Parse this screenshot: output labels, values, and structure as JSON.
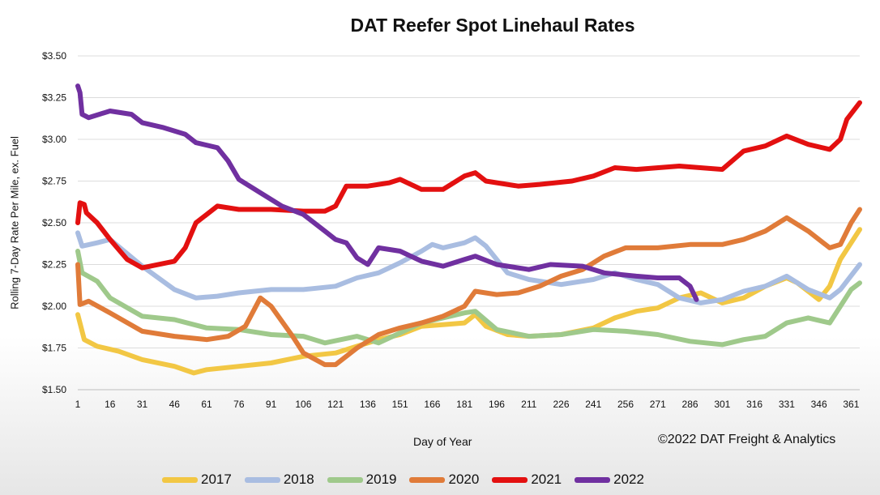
{
  "chart_data": {
    "type": "line",
    "title": "DAT Reefer Spot Linehaul Rates",
    "xlabel": "Day of Year",
    "ylabel": "Rolling 7-Day Rate Per Mile, ex. Fuel",
    "credit": "©2022 DAT Freight & Analytics",
    "xlim": [
      1,
      365
    ],
    "ylim": [
      1.5,
      3.5
    ],
    "xticks": [
      1,
      16,
      31,
      46,
      61,
      76,
      91,
      106,
      121,
      136,
      151,
      166,
      181,
      196,
      211,
      226,
      241,
      256,
      271,
      286,
      301,
      316,
      331,
      346,
      361
    ],
    "yticks": [
      {
        "value": 1.5,
        "label": "$1.50"
      },
      {
        "value": 1.75,
        "label": "$1.75"
      },
      {
        "value": 2.0,
        "label": "$2.00"
      },
      {
        "value": 2.25,
        "label": "$2.25"
      },
      {
        "value": 2.5,
        "label": "$2.50"
      },
      {
        "value": 2.75,
        "label": "$2.75"
      },
      {
        "value": 3.0,
        "label": "$3.00"
      },
      {
        "value": 3.25,
        "label": "$3.25"
      },
      {
        "value": 3.5,
        "label": "$3.50"
      }
    ],
    "grid": true,
    "legend_position": "bottom",
    "series": [
      {
        "name": "2017",
        "color": "#f2c744",
        "points": [
          [
            1,
            1.95
          ],
          [
            4,
            1.8
          ],
          [
            10,
            1.76
          ],
          [
            20,
            1.73
          ],
          [
            31,
            1.68
          ],
          [
            46,
            1.64
          ],
          [
            55,
            1.6
          ],
          [
            61,
            1.62
          ],
          [
            76,
            1.64
          ],
          [
            91,
            1.66
          ],
          [
            106,
            1.7
          ],
          [
            121,
            1.72
          ],
          [
            131,
            1.76
          ],
          [
            141,
            1.8
          ],
          [
            151,
            1.83
          ],
          [
            161,
            1.88
          ],
          [
            171,
            1.89
          ],
          [
            181,
            1.9
          ],
          [
            186,
            1.95
          ],
          [
            191,
            1.88
          ],
          [
            201,
            1.83
          ],
          [
            211,
            1.82
          ],
          [
            226,
            1.83
          ],
          [
            241,
            1.87
          ],
          [
            251,
            1.93
          ],
          [
            261,
            1.97
          ],
          [
            271,
            1.99
          ],
          [
            281,
            2.05
          ],
          [
            291,
            2.08
          ],
          [
            301,
            2.02
          ],
          [
            311,
            2.05
          ],
          [
            321,
            2.12
          ],
          [
            331,
            2.17
          ],
          [
            336,
            2.14
          ],
          [
            346,
            2.04
          ],
          [
            351,
            2.12
          ],
          [
            356,
            2.28
          ],
          [
            365,
            2.46
          ]
        ]
      },
      {
        "name": "2018",
        "color": "#a9bde1",
        "points": [
          [
            1,
            2.44
          ],
          [
            3,
            2.36
          ],
          [
            10,
            2.38
          ],
          [
            16,
            2.4
          ],
          [
            31,
            2.24
          ],
          [
            46,
            2.1
          ],
          [
            56,
            2.05
          ],
          [
            66,
            2.06
          ],
          [
            76,
            2.08
          ],
          [
            91,
            2.1
          ],
          [
            106,
            2.1
          ],
          [
            121,
            2.12
          ],
          [
            131,
            2.17
          ],
          [
            141,
            2.2
          ],
          [
            151,
            2.26
          ],
          [
            161,
            2.33
          ],
          [
            166,
            2.37
          ],
          [
            171,
            2.35
          ],
          [
            181,
            2.38
          ],
          [
            186,
            2.41
          ],
          [
            191,
            2.36
          ],
          [
            201,
            2.2
          ],
          [
            211,
            2.16
          ],
          [
            226,
            2.13
          ],
          [
            241,
            2.16
          ],
          [
            251,
            2.2
          ],
          [
            261,
            2.16
          ],
          [
            271,
            2.13
          ],
          [
            281,
            2.05
          ],
          [
            291,
            2.02
          ],
          [
            301,
            2.04
          ],
          [
            311,
            2.09
          ],
          [
            321,
            2.12
          ],
          [
            331,
            2.18
          ],
          [
            341,
            2.1
          ],
          [
            351,
            2.05
          ],
          [
            356,
            2.1
          ],
          [
            365,
            2.25
          ]
        ]
      },
      {
        "name": "2019",
        "color": "#9fc98b",
        "points": [
          [
            1,
            2.33
          ],
          [
            3,
            2.2
          ],
          [
            10,
            2.15
          ],
          [
            16,
            2.05
          ],
          [
            31,
            1.94
          ],
          [
            46,
            1.92
          ],
          [
            61,
            1.87
          ],
          [
            76,
            1.86
          ],
          [
            91,
            1.83
          ],
          [
            106,
            1.82
          ],
          [
            116,
            1.78
          ],
          [
            131,
            1.82
          ],
          [
            141,
            1.78
          ],
          [
            151,
            1.84
          ],
          [
            161,
            1.9
          ],
          [
            171,
            1.93
          ],
          [
            181,
            1.96
          ],
          [
            186,
            1.97
          ],
          [
            196,
            1.86
          ],
          [
            211,
            1.82
          ],
          [
            226,
            1.83
          ],
          [
            241,
            1.86
          ],
          [
            256,
            1.85
          ],
          [
            271,
            1.83
          ],
          [
            286,
            1.79
          ],
          [
            301,
            1.77
          ],
          [
            311,
            1.8
          ],
          [
            321,
            1.82
          ],
          [
            331,
            1.9
          ],
          [
            341,
            1.93
          ],
          [
            351,
            1.9
          ],
          [
            361,
            2.1
          ],
          [
            365,
            2.14
          ]
        ]
      },
      {
        "name": "2020",
        "color": "#e07b39",
        "points": [
          [
            1,
            2.25
          ],
          [
            2,
            2.01
          ],
          [
            6,
            2.03
          ],
          [
            16,
            1.96
          ],
          [
            31,
            1.85
          ],
          [
            46,
            1.82
          ],
          [
            61,
            1.8
          ],
          [
            71,
            1.82
          ],
          [
            79,
            1.88
          ],
          [
            86,
            2.05
          ],
          [
            91,
            2.0
          ],
          [
            101,
            1.82
          ],
          [
            106,
            1.72
          ],
          [
            116,
            1.65
          ],
          [
            121,
            1.65
          ],
          [
            131,
            1.75
          ],
          [
            141,
            1.83
          ],
          [
            151,
            1.87
          ],
          [
            161,
            1.9
          ],
          [
            171,
            1.94
          ],
          [
            181,
            2.0
          ],
          [
            186,
            2.09
          ],
          [
            196,
            2.07
          ],
          [
            206,
            2.08
          ],
          [
            216,
            2.12
          ],
          [
            226,
            2.18
          ],
          [
            236,
            2.22
          ],
          [
            246,
            2.3
          ],
          [
            256,
            2.35
          ],
          [
            271,
            2.35
          ],
          [
            286,
            2.37
          ],
          [
            301,
            2.37
          ],
          [
            311,
            2.4
          ],
          [
            321,
            2.45
          ],
          [
            331,
            2.53
          ],
          [
            341,
            2.45
          ],
          [
            351,
            2.35
          ],
          [
            356,
            2.37
          ],
          [
            361,
            2.5
          ],
          [
            365,
            2.58
          ]
        ]
      },
      {
        "name": "2021",
        "color": "#e31010",
        "points": [
          [
            1,
            2.5
          ],
          [
            2,
            2.62
          ],
          [
            4,
            2.61
          ],
          [
            5,
            2.56
          ],
          [
            10,
            2.5
          ],
          [
            16,
            2.4
          ],
          [
            24,
            2.28
          ],
          [
            31,
            2.23
          ],
          [
            46,
            2.27
          ],
          [
            51,
            2.35
          ],
          [
            56,
            2.5
          ],
          [
            66,
            2.6
          ],
          [
            76,
            2.58
          ],
          [
            91,
            2.58
          ],
          [
            106,
            2.57
          ],
          [
            116,
            2.57
          ],
          [
            121,
            2.6
          ],
          [
            126,
            2.72
          ],
          [
            136,
            2.72
          ],
          [
            146,
            2.74
          ],
          [
            151,
            2.76
          ],
          [
            161,
            2.7
          ],
          [
            171,
            2.7
          ],
          [
            181,
            2.78
          ],
          [
            186,
            2.8
          ],
          [
            191,
            2.75
          ],
          [
            206,
            2.72
          ],
          [
            216,
            2.73
          ],
          [
            231,
            2.75
          ],
          [
            241,
            2.78
          ],
          [
            251,
            2.83
          ],
          [
            261,
            2.82
          ],
          [
            281,
            2.84
          ],
          [
            301,
            2.82
          ],
          [
            311,
            2.93
          ],
          [
            321,
            2.96
          ],
          [
            331,
            3.02
          ],
          [
            341,
            2.97
          ],
          [
            351,
            2.94
          ],
          [
            356,
            3.0
          ],
          [
            359,
            3.12
          ],
          [
            365,
            3.22
          ]
        ]
      },
      {
        "name": "2022",
        "color": "#7030a0",
        "points": [
          [
            1,
            3.32
          ],
          [
            2,
            3.28
          ],
          [
            3,
            3.15
          ],
          [
            6,
            3.13
          ],
          [
            11,
            3.15
          ],
          [
            16,
            3.17
          ],
          [
            26,
            3.15
          ],
          [
            31,
            3.1
          ],
          [
            41,
            3.07
          ],
          [
            51,
            3.03
          ],
          [
            56,
            2.98
          ],
          [
            66,
            2.95
          ],
          [
            71,
            2.87
          ],
          [
            76,
            2.76
          ],
          [
            86,
            2.68
          ],
          [
            96,
            2.6
          ],
          [
            106,
            2.55
          ],
          [
            116,
            2.45
          ],
          [
            121,
            2.4
          ],
          [
            126,
            2.38
          ],
          [
            131,
            2.29
          ],
          [
            136,
            2.25
          ],
          [
            141,
            2.35
          ],
          [
            151,
            2.33
          ],
          [
            161,
            2.27
          ],
          [
            171,
            2.24
          ],
          [
            181,
            2.28
          ],
          [
            186,
            2.3
          ],
          [
            196,
            2.25
          ],
          [
            211,
            2.22
          ],
          [
            221,
            2.25
          ],
          [
            236,
            2.24
          ],
          [
            246,
            2.2
          ],
          [
            261,
            2.18
          ],
          [
            271,
            2.17
          ],
          [
            281,
            2.17
          ],
          [
            286,
            2.12
          ],
          [
            289,
            2.04
          ]
        ]
      }
    ]
  }
}
